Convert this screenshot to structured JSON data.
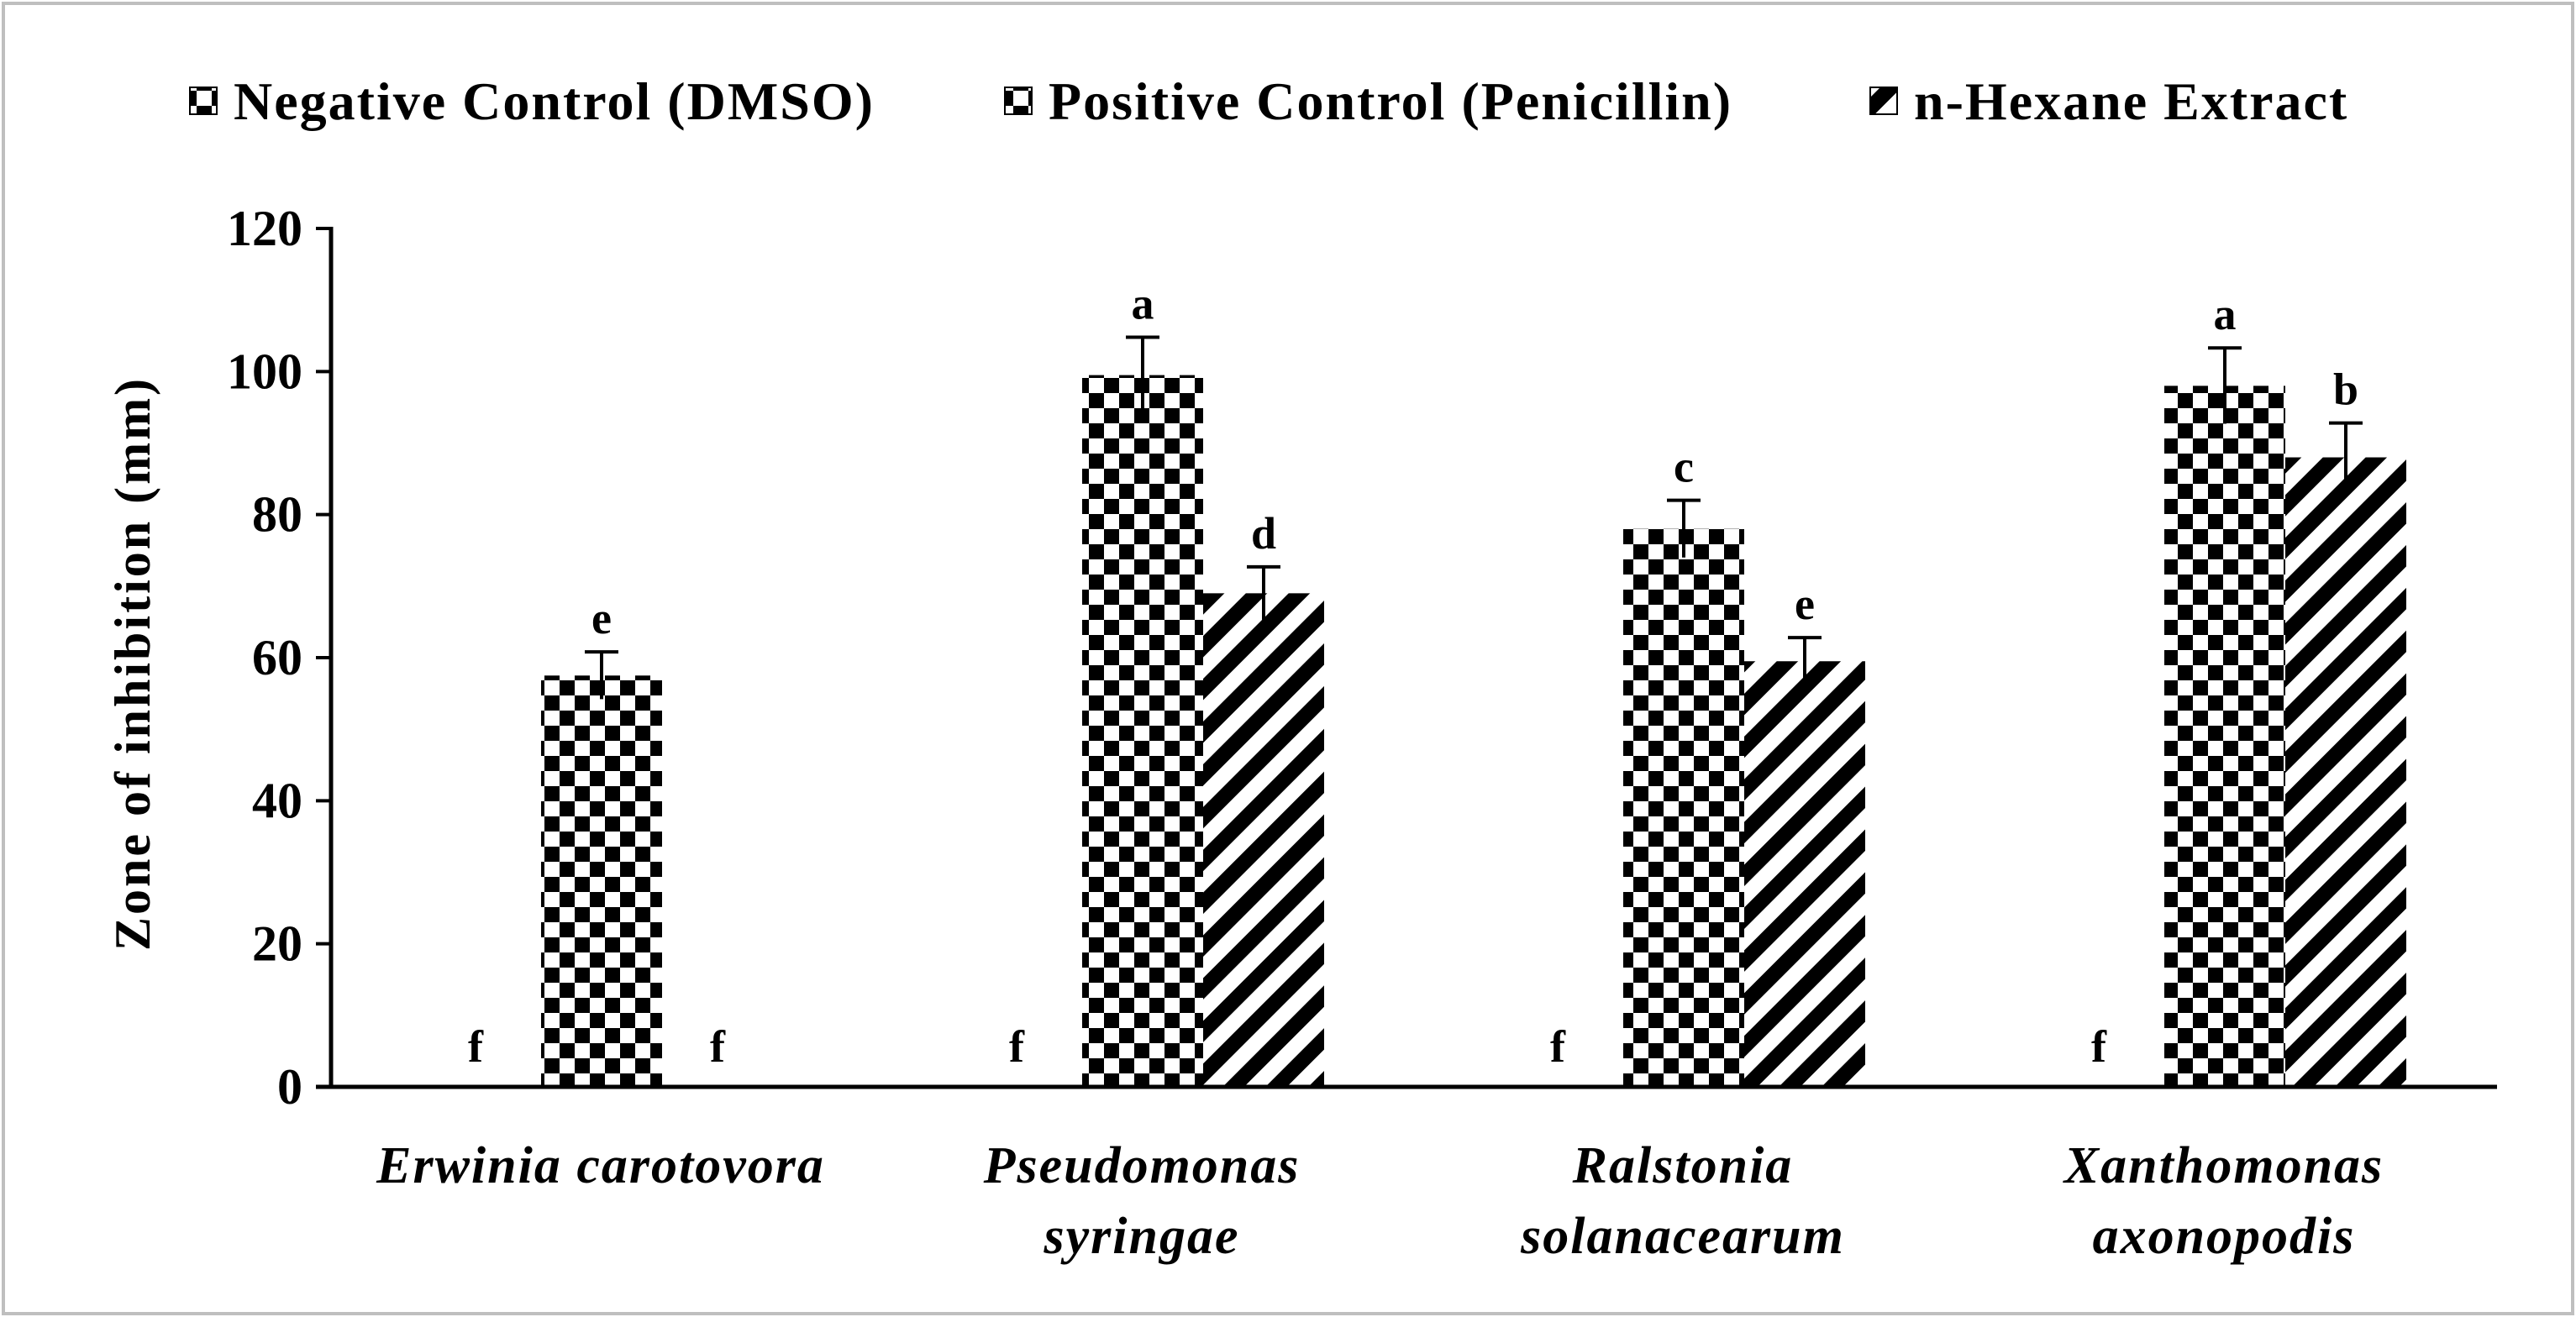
{
  "chart_data": {
    "type": "bar",
    "title": "",
    "xlabel": "",
    "ylabel": "Zone of inhibition (mm)",
    "ylim": [
      0,
      120
    ],
    "yticks": [
      0,
      20,
      40,
      60,
      80,
      100,
      120
    ],
    "grid": false,
    "legend_position": "top",
    "categories": [
      [
        "Erwinia carotovora"
      ],
      [
        "Pseudomonas",
        "syringae"
      ],
      [
        "Ralstonia",
        "solanacearum"
      ],
      [
        "Xanthomonas",
        "axonopodis"
      ]
    ],
    "series": [
      {
        "name": "Negative Control (DMSO)",
        "pattern": "checker",
        "values": [
          0,
          0,
          0,
          0
        ],
        "errors": [
          0,
          0,
          0,
          0
        ],
        "letters": [
          "f",
          "f",
          "f",
          "f"
        ]
      },
      {
        "name": "Positive Control (Penicillin)",
        "pattern": "checker",
        "values": [
          57.5,
          99.5,
          78,
          98
        ],
        "errors": [
          3.3,
          5.3,
          4,
          5.3
        ],
        "letters": [
          "e",
          "a",
          "c",
          "a"
        ]
      },
      {
        "name": "n-Hexane Extract",
        "pattern": "diagonal",
        "values": [
          0,
          69,
          59.5,
          88
        ],
        "errors": [
          0,
          3.7,
          3.3,
          4.8
        ],
        "letters": [
          "f",
          "d",
          "e",
          "b"
        ]
      }
    ],
    "colors": {
      "ink": "#000000",
      "background": "#ffffff",
      "frame": "#bfbfbf"
    }
  }
}
